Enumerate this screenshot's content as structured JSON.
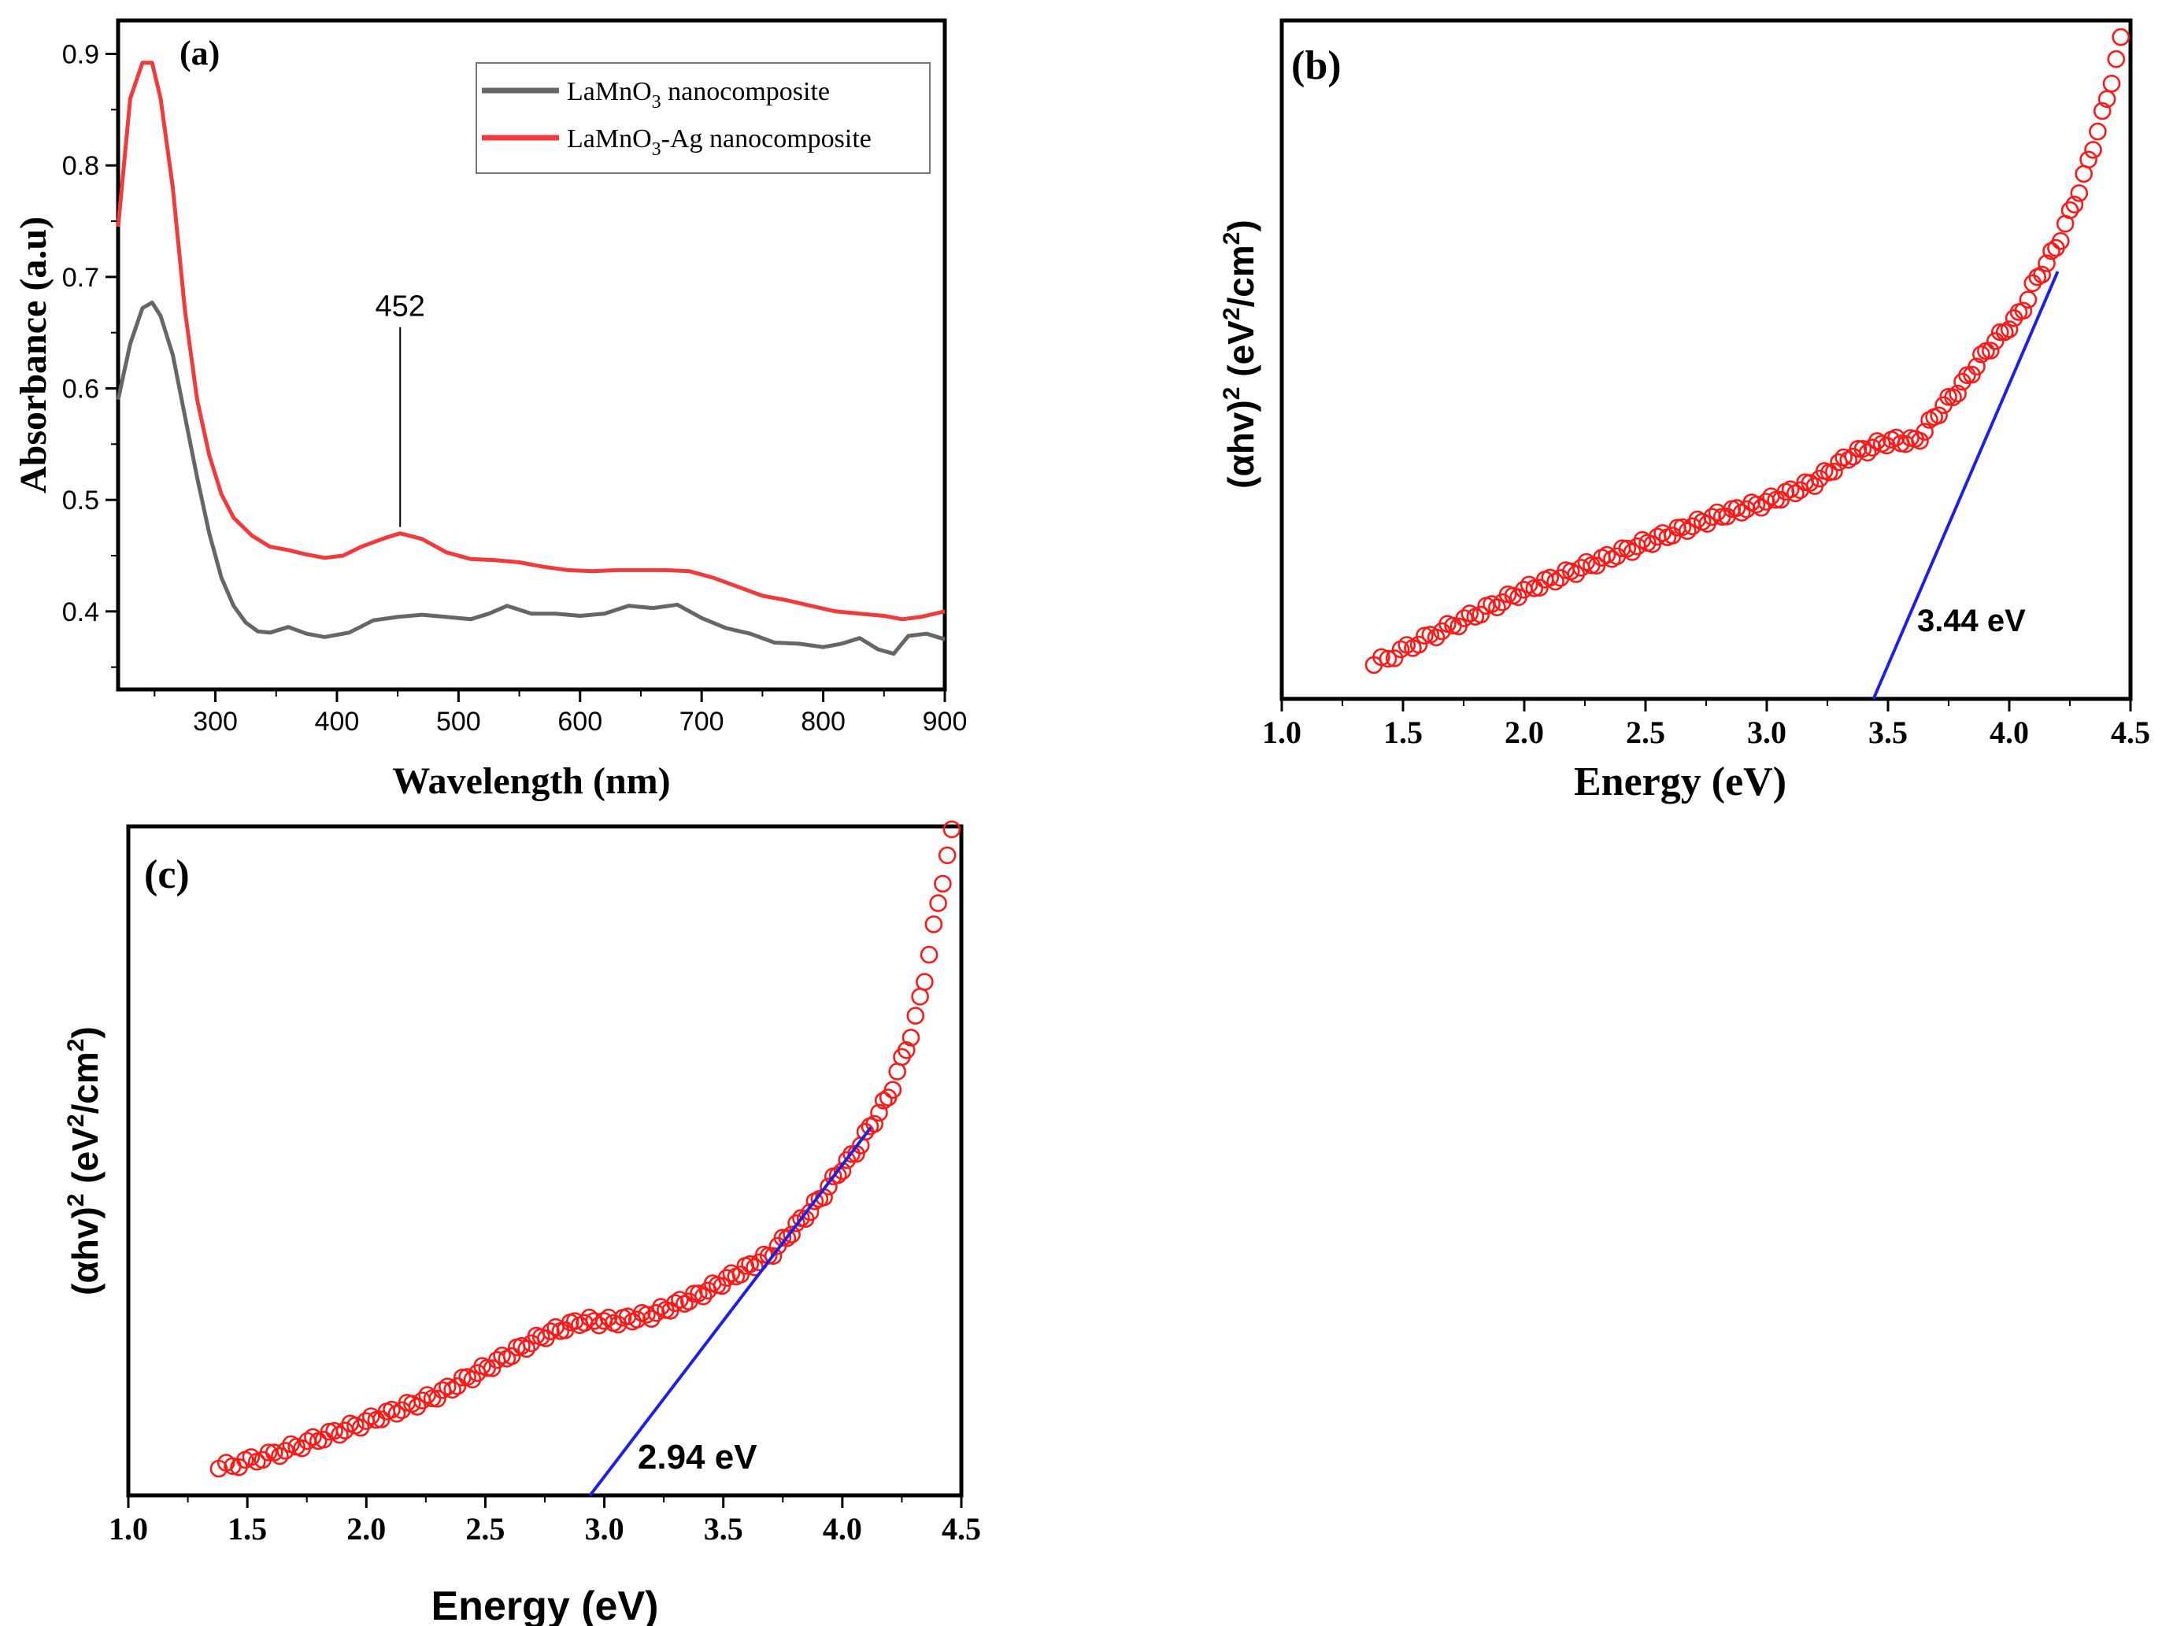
{
  "chart_data": [
    {
      "id": "a",
      "type": "line",
      "panel_label": "(a)",
      "title": "",
      "xlabel": "Wavelength (nm)",
      "ylabel": "Absorbance (a.u)",
      "xlim": [
        220,
        900
      ],
      "ylim": [
        0.33,
        0.93
      ],
      "xticks": [
        300,
        400,
        500,
        600,
        700,
        800,
        900
      ],
      "yticks": [
        0.4,
        0.5,
        0.6,
        0.7,
        0.8,
        0.9
      ],
      "yticks_labels": [
        "0.4",
        "0.5",
        "0.6",
        "0.7",
        "0.8",
        "0.9"
      ],
      "legend_position": "top-right",
      "annotation": {
        "label": "452",
        "x": 452,
        "y": 0.47
      },
      "series": [
        {
          "name_parts": [
            "LaMnO",
            "3",
            " nanocomposite"
          ],
          "color": "#666666",
          "x": [
            220,
            230,
            240,
            248,
            255,
            265,
            275,
            285,
            295,
            305,
            315,
            325,
            335,
            345,
            360,
            375,
            390,
            410,
            430,
            450,
            470,
            490,
            510,
            525,
            540,
            560,
            580,
            600,
            620,
            640,
            660,
            680,
            700,
            720,
            740,
            760,
            780,
            800,
            815,
            830,
            845,
            858,
            870,
            885,
            900
          ],
          "y": [
            0.59,
            0.64,
            0.672,
            0.677,
            0.665,
            0.63,
            0.575,
            0.52,
            0.47,
            0.43,
            0.405,
            0.39,
            0.382,
            0.381,
            0.386,
            0.38,
            0.377,
            0.381,
            0.392,
            0.395,
            0.397,
            0.395,
            0.393,
            0.398,
            0.405,
            0.398,
            0.398,
            0.396,
            0.398,
            0.405,
            0.403,
            0.406,
            0.394,
            0.385,
            0.38,
            0.372,
            0.371,
            0.368,
            0.371,
            0.376,
            0.366,
            0.362,
            0.378,
            0.38,
            0.375
          ]
        },
        {
          "name_parts": [
            "LaMnO",
            "3",
            "-Ag nanocomposite"
          ],
          "color": "#ef3b3b",
          "x": [
            220,
            230,
            240,
            248,
            255,
            265,
            275,
            285,
            295,
            305,
            315,
            330,
            345,
            360,
            375,
            390,
            405,
            420,
            440,
            452,
            470,
            490,
            510,
            530,
            550,
            570,
            590,
            610,
            630,
            650,
            670,
            690,
            710,
            730,
            750,
            770,
            790,
            810,
            830,
            850,
            865,
            880,
            900
          ],
          "y": [
            0.745,
            0.86,
            0.892,
            0.892,
            0.86,
            0.78,
            0.67,
            0.59,
            0.54,
            0.505,
            0.484,
            0.468,
            0.458,
            0.455,
            0.451,
            0.448,
            0.45,
            0.458,
            0.466,
            0.47,
            0.465,
            0.453,
            0.447,
            0.446,
            0.444,
            0.44,
            0.437,
            0.436,
            0.437,
            0.437,
            0.437,
            0.436,
            0.43,
            0.422,
            0.414,
            0.41,
            0.405,
            0.4,
            0.398,
            0.396,
            0.393,
            0.395,
            0.4
          ]
        }
      ]
    },
    {
      "id": "b",
      "type": "scatter",
      "panel_label": "(b)",
      "title": "",
      "xlabel": "Energy (eV)",
      "ylabel_parts": [
        "(αhv)",
        "2",
        " (eV",
        "2",
        "/cm",
        "2",
        ")"
      ],
      "xlim": [
        1.0,
        4.5
      ],
      "ylim": [
        0,
        1
      ],
      "xticks": [
        1.0,
        1.5,
        2.0,
        2.5,
        3.0,
        3.5,
        4.0,
        4.5
      ],
      "xticks_labels": [
        "1.0",
        "1.5",
        "2.0",
        "2.5",
        "3.0",
        "3.5",
        "4.0",
        "4.5"
      ],
      "x_range": [
        1.38,
        4.46
      ],
      "curve_x": [
        1.38,
        1.6,
        2.0,
        2.5,
        2.8,
        3.0,
        3.2,
        3.35,
        3.5,
        3.62,
        3.7,
        3.8,
        3.9,
        4.0,
        4.05,
        4.1,
        4.2,
        4.3,
        4.35,
        4.4,
        4.46
      ],
      "curve_y": [
        0.05,
        0.09,
        0.16,
        0.23,
        0.27,
        0.29,
        0.32,
        0.36,
        0.38,
        0.38,
        0.42,
        0.46,
        0.51,
        0.55,
        0.57,
        0.61,
        0.67,
        0.76,
        0.82,
        0.88,
        0.97
      ],
      "fit_line": {
        "x1": 3.44,
        "y1": 0.0,
        "x2": 4.2,
        "y2": 0.63,
        "color": "#2020e0"
      },
      "annotation": {
        "label": "3.44 eV",
        "x": 3.62,
        "y": 0.1
      },
      "marker_color": "#ff1a1a"
    },
    {
      "id": "c",
      "type": "scatter",
      "panel_label": "(c)",
      "title": "",
      "xlabel": "Energy (eV)",
      "ylabel_parts": [
        "(αhv)",
        "2",
        " (eV",
        "2",
        "/cm",
        "2",
        ")"
      ],
      "xlim": [
        1.0,
        4.5
      ],
      "ylim": [
        0,
        1
      ],
      "xticks": [
        1.0,
        1.5,
        2.0,
        2.5,
        3.0,
        3.5,
        4.0,
        4.5
      ],
      "xticks_labels": [
        "1.0",
        "1.5",
        "2.0",
        "2.5",
        "3.0",
        "3.5",
        "4.0",
        "4.5"
      ],
      "x_range": [
        1.38,
        4.46
      ],
      "curve_x": [
        1.38,
        1.6,
        2.0,
        2.3,
        2.55,
        2.75,
        2.9,
        3.05,
        3.2,
        3.4,
        3.55,
        3.7,
        3.8,
        3.9,
        4.0,
        4.05,
        4.1,
        4.2,
        4.3,
        4.35,
        4.4,
        4.46
      ],
      "curve_y": [
        0.04,
        0.06,
        0.11,
        0.15,
        0.2,
        0.24,
        0.26,
        0.26,
        0.27,
        0.3,
        0.33,
        0.36,
        0.4,
        0.44,
        0.49,
        0.51,
        0.54,
        0.6,
        0.7,
        0.78,
        0.88,
        0.99
      ],
      "fit_line": {
        "x1": 2.94,
        "y1": 0.0,
        "x2": 4.12,
        "y2": 0.55,
        "color": "#2020e0"
      },
      "annotation": {
        "label": "2.94 eV",
        "x": 3.14,
        "y": 0.04
      },
      "marker_color": "#ff1a1a"
    }
  ]
}
